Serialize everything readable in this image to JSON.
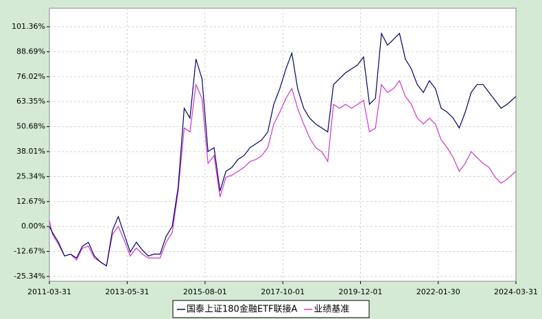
{
  "chart_data": {
    "type": "line",
    "x": [
      "2011-03-31",
      "2011-05-01",
      "2011-07-01",
      "2011-09-01",
      "2011-11-01",
      "2012-01-01",
      "2012-03-01",
      "2012-05-01",
      "2012-07-01",
      "2012-09-01",
      "2012-11-01",
      "2013-01-01",
      "2013-03-01",
      "2013-05-01",
      "2013-07-01",
      "2013-09-01",
      "2013-11-01",
      "2014-01-01",
      "2014-03-01",
      "2014-05-01",
      "2014-07-01",
      "2014-09-01",
      "2014-11-01",
      "2015-01-01",
      "2015-03-01",
      "2015-05-01",
      "2015-07-01",
      "2015-09-01",
      "2015-11-01",
      "2016-01-01",
      "2016-03-01",
      "2016-05-01",
      "2016-07-01",
      "2016-09-01",
      "2016-11-01",
      "2017-01-01",
      "2017-03-01",
      "2017-05-01",
      "2017-07-01",
      "2017-09-01",
      "2017-11-01",
      "2018-01-01",
      "2018-03-01",
      "2018-05-01",
      "2018-07-01",
      "2018-09-01",
      "2018-11-01",
      "2019-01-01",
      "2019-03-01",
      "2019-05-01",
      "2019-07-01",
      "2019-09-01",
      "2019-11-01",
      "2020-01-01",
      "2020-03-01",
      "2020-05-01",
      "2020-07-01",
      "2020-09-01",
      "2020-11-01",
      "2021-01-01",
      "2021-03-01",
      "2021-05-01",
      "2021-07-01",
      "2021-09-01",
      "2021-11-01",
      "2022-01-01",
      "2022-03-01",
      "2022-05-01",
      "2022-07-01",
      "2022-09-01",
      "2022-11-01",
      "2023-01-01",
      "2023-03-01",
      "2023-05-01",
      "2023-07-01",
      "2023-09-01",
      "2023-11-01",
      "2024-01-01",
      "2024-03-31"
    ],
    "series": [
      {
        "name": "国泰上证180金融ETF联接A",
        "color": "#000066",
        "values": [
          0,
          -3,
          -8,
          -15,
          -14,
          -16,
          -10,
          -8,
          -15,
          -18,
          -20,
          -2,
          5,
          -4,
          -13,
          -8,
          -12,
          -15,
          -14,
          -14,
          -5,
          0,
          20,
          60,
          55,
          85,
          75,
          38,
          40,
          18,
          28,
          30,
          34,
          36,
          40,
          42,
          44,
          48,
          62,
          70,
          80,
          88,
          70,
          60,
          55,
          52,
          50,
          48,
          72,
          75,
          78,
          80,
          82,
          86,
          62,
          65,
          98,
          92,
          95,
          98,
          85,
          80,
          72,
          68,
          74,
          70,
          60,
          58,
          55,
          50,
          58,
          68,
          72,
          72,
          68,
          64,
          60,
          62,
          66
        ]
      },
      {
        "name": "业绩基准",
        "color": "#cc33cc",
        "values": [
          3,
          -4,
          -9,
          -15,
          -14,
          -17,
          -11,
          -10,
          -16,
          -18,
          -20,
          -4,
          0,
          -7,
          -15,
          -11,
          -14,
          -16,
          -16,
          -16,
          -8,
          -3,
          18,
          50,
          48,
          72,
          65,
          32,
          36,
          15,
          25,
          26,
          28,
          30,
          33,
          34,
          36,
          40,
          52,
          58,
          65,
          70,
          60,
          52,
          45,
          40,
          38,
          33,
          62,
          60,
          62,
          60,
          62,
          64,
          48,
          50,
          72,
          68,
          70,
          74,
          66,
          62,
          55,
          52,
          55,
          52,
          44,
          40,
          35,
          28,
          32,
          38,
          35,
          32,
          30,
          25,
          22,
          24,
          28
        ]
      }
    ],
    "xlim": [
      "2011-03-31",
      "2024-03-31"
    ],
    "xticks": [
      "2011-03-31",
      "2013-05-31",
      "2015-08-01",
      "2017-10-01",
      "2019-12-01",
      "2022-01-30",
      "2024-03-31"
    ],
    "ylim": [
      -27.8,
      110.76
    ],
    "yticks": [
      {
        "value": -25.34,
        "label": "-25.34%"
      },
      {
        "value": -12.67,
        "label": "-12.67%"
      },
      {
        "value": 0,
        "label": "0.00%"
      },
      {
        "value": 12.67,
        "label": "12.67%"
      },
      {
        "value": 25.34,
        "label": "25.34%"
      },
      {
        "value": 38.01,
        "label": "38.01%"
      },
      {
        "value": 50.68,
        "label": "50.68%"
      },
      {
        "value": 63.35,
        "label": "63.35%"
      },
      {
        "value": 76.02,
        "label": "76.02%"
      },
      {
        "value": 88.69,
        "label": "88.69%"
      },
      {
        "value": 101.36,
        "label": "101.36%"
      }
    ],
    "grid": true
  }
}
